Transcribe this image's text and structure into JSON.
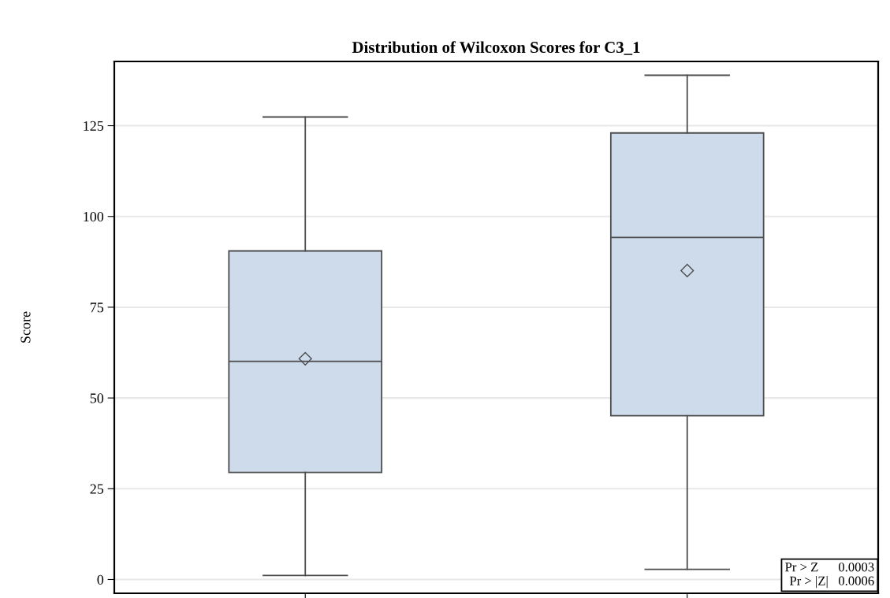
{
  "chart_data": {
    "type": "box",
    "title": "Distribution of Wilcoxon Scores for C3_1",
    "ylabel": "Score",
    "categories": [
      null,
      null
    ],
    "boxes": [
      {
        "low": 1.1,
        "q1": 29.5,
        "median": 60.1,
        "q3": 90.5,
        "high": 127.4,
        "mean": 60.8
      },
      {
        "low": 2.8,
        "q1": 45.1,
        "median": 94.2,
        "q3": 123.0,
        "high": 138.9,
        "mean": 85.1
      }
    ],
    "color": "#cddbeb",
    "ylim": [
      -3.8,
      142.7
    ],
    "yticks": [
      0,
      25,
      50,
      75,
      100,
      125
    ],
    "grid": "y",
    "annotations": [
      "Pr > Z      0.0003",
      "Pr > |Z|   0.0006"
    ]
  }
}
